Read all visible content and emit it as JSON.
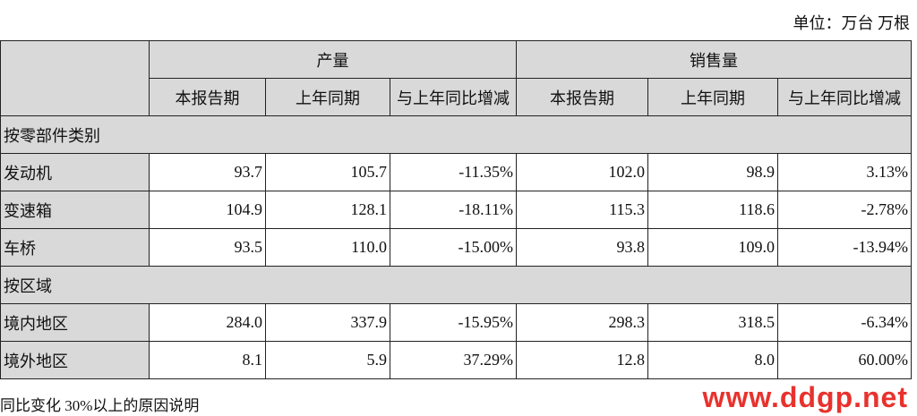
{
  "unit": "单位：万台 万根",
  "table": {
    "group_headers": [
      "产量",
      "销售量"
    ],
    "sub_headers": [
      "本报告期",
      "上年同期",
      "与上年同比增减",
      "本报告期",
      "上年同期",
      "与上年同比增减"
    ],
    "sections": [
      {
        "title": "按零部件类别",
        "rows": [
          [
            "发动机",
            "93.7",
            "105.7",
            "-11.35%",
            "102.0",
            "98.9",
            "3.13%"
          ],
          [
            "变速箱",
            "104.9",
            "128.1",
            "-18.11%",
            "115.3",
            "118.6",
            "-2.78%"
          ],
          [
            "车桥",
            "93.5",
            "110.0",
            "-15.00%",
            "93.8",
            "109.0",
            "-13.94%"
          ]
        ]
      },
      {
        "title": "按区域",
        "rows": [
          [
            "境内地区",
            "284.0",
            "337.9",
            "-15.95%",
            "298.3",
            "318.5",
            "-6.34%"
          ],
          [
            "境外地区",
            "8.1",
            "5.9",
            "37.29%",
            "12.8",
            "8.0",
            "60.00%"
          ]
        ]
      }
    ]
  },
  "footer": "同比变化 30%以上的原因说明",
  "watermark": "www.ddgp.net"
}
